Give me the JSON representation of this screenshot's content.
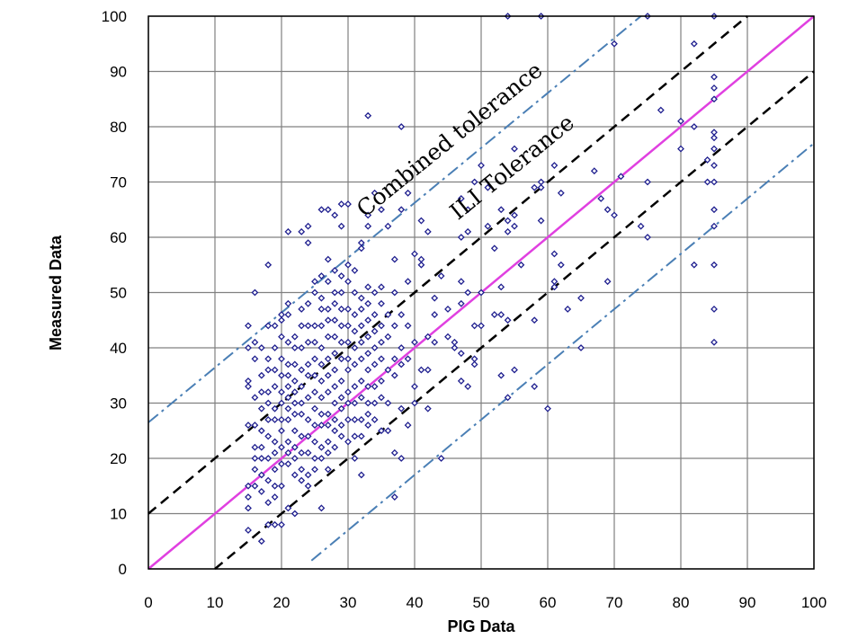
{
  "chart_data": {
    "type": "scatter",
    "title": "",
    "xlabel": "PIG Data",
    "ylabel": "Measured Data",
    "xlim": [
      0,
      100
    ],
    "ylim": [
      0,
      100
    ],
    "x_ticks": [
      "0",
      "10",
      "20",
      "30",
      "40",
      "50",
      "60",
      "70",
      "80",
      "90",
      "100"
    ],
    "y_ticks": [
      "0",
      "10",
      "20",
      "30",
      "40",
      "50",
      "60",
      "70",
      "80",
      "90",
      "100"
    ],
    "grid": true,
    "lines": [
      {
        "style": "solid",
        "color": "#e040e0",
        "points": [
          [
            0,
            0
          ],
          [
            100,
            100
          ]
        ]
      },
      {
        "style": "dashed",
        "color": "#000000",
        "points": [
          [
            0,
            10
          ],
          [
            90,
            100
          ]
        ]
      },
      {
        "style": "dashed",
        "color": "#000000",
        "points": [
          [
            10,
            0
          ],
          [
            100,
            90
          ]
        ]
      },
      {
        "style": "dash-dot",
        "color": "#4a7fb5",
        "points": [
          [
            0,
            26.5
          ],
          [
            74,
            100
          ]
        ]
      },
      {
        "style": "dash-dot",
        "color": "#4a7fb5",
        "points": [
          [
            24.5,
            1.5
          ],
          [
            100,
            77
          ]
        ]
      }
    ],
    "annotations": [
      {
        "text": "Combined tolerance",
        "x": 32.5,
        "y": 63.5
      },
      {
        "text": "ILI Tolerance",
        "x": 46.5,
        "y": 63
      }
    ],
    "marker_color": "#1f1f8f",
    "points": [
      [
        15,
        44
      ],
      [
        15,
        40
      ],
      [
        15,
        34
      ],
      [
        15,
        33
      ],
      [
        15,
        26
      ],
      [
        15,
        15
      ],
      [
        15,
        13
      ],
      [
        15,
        11
      ],
      [
        15,
        7
      ],
      [
        16,
        50
      ],
      [
        16,
        41
      ],
      [
        16,
        38
      ],
      [
        16,
        31
      ],
      [
        16,
        26
      ],
      [
        16,
        22
      ],
      [
        16,
        20
      ],
      [
        16,
        18
      ],
      [
        16,
        15
      ],
      [
        17,
        40
      ],
      [
        17,
        35
      ],
      [
        17,
        32
      ],
      [
        17,
        29
      ],
      [
        17,
        25
      ],
      [
        17,
        22
      ],
      [
        17,
        20
      ],
      [
        17,
        17
      ],
      [
        17,
        14
      ],
      [
        17,
        5
      ],
      [
        18,
        55
      ],
      [
        18,
        44
      ],
      [
        18,
        38
      ],
      [
        18,
        36
      ],
      [
        18,
        32
      ],
      [
        18,
        30
      ],
      [
        18,
        27
      ],
      [
        18,
        24
      ],
      [
        18,
        20
      ],
      [
        18,
        16
      ],
      [
        18,
        12
      ],
      [
        18,
        8
      ],
      [
        19,
        44
      ],
      [
        19,
        40
      ],
      [
        19,
        36
      ],
      [
        19,
        33
      ],
      [
        19,
        29
      ],
      [
        19,
        27
      ],
      [
        19,
        23
      ],
      [
        19,
        21
      ],
      [
        19,
        18
      ],
      [
        19,
        15
      ],
      [
        19,
        13
      ],
      [
        19,
        8
      ],
      [
        20,
        46
      ],
      [
        20,
        45
      ],
      [
        20,
        42
      ],
      [
        20,
        38
      ],
      [
        20,
        35
      ],
      [
        20,
        32
      ],
      [
        20,
        30
      ],
      [
        20,
        27
      ],
      [
        20,
        25
      ],
      [
        20,
        22
      ],
      [
        20,
        19
      ],
      [
        20,
        15
      ],
      [
        20,
        8
      ],
      [
        21,
        61
      ],
      [
        21,
        48
      ],
      [
        21,
        46
      ],
      [
        21,
        41
      ],
      [
        21,
        37
      ],
      [
        21,
        35
      ],
      [
        21,
        33
      ],
      [
        21,
        31
      ],
      [
        21,
        29
      ],
      [
        21,
        27
      ],
      [
        21,
        23
      ],
      [
        21,
        21
      ],
      [
        21,
        19
      ],
      [
        21,
        11
      ],
      [
        22,
        42
      ],
      [
        22,
        40
      ],
      [
        22,
        37
      ],
      [
        22,
        34
      ],
      [
        22,
        32
      ],
      [
        22,
        30
      ],
      [
        22,
        28
      ],
      [
        22,
        25
      ],
      [
        22,
        22
      ],
      [
        22,
        20
      ],
      [
        22,
        17
      ],
      [
        22,
        10
      ],
      [
        23,
        61
      ],
      [
        23,
        47
      ],
      [
        23,
        44
      ],
      [
        23,
        40
      ],
      [
        23,
        36
      ],
      [
        23,
        33
      ],
      [
        23,
        30
      ],
      [
        23,
        28
      ],
      [
        23,
        24
      ],
      [
        23,
        21
      ],
      [
        23,
        18
      ],
      [
        23,
        16
      ],
      [
        24,
        62
      ],
      [
        24,
        59
      ],
      [
        24,
        48
      ],
      [
        24,
        44
      ],
      [
        24,
        41
      ],
      [
        24,
        37
      ],
      [
        24,
        35
      ],
      [
        24,
        31
      ],
      [
        24,
        27
      ],
      [
        24,
        24
      ],
      [
        24,
        21
      ],
      [
        24,
        17
      ],
      [
        24,
        15
      ],
      [
        25,
        52
      ],
      [
        25,
        50
      ],
      [
        25,
        44
      ],
      [
        25,
        41
      ],
      [
        25,
        38
      ],
      [
        25,
        35
      ],
      [
        25,
        32
      ],
      [
        25,
        29
      ],
      [
        25,
        26
      ],
      [
        25,
        23
      ],
      [
        25,
        20
      ],
      [
        25,
        18
      ],
      [
        26,
        65
      ],
      [
        26,
        53
      ],
      [
        26,
        49
      ],
      [
        26,
        47
      ],
      [
        26,
        44
      ],
      [
        26,
        40
      ],
      [
        26,
        37
      ],
      [
        26,
        34
      ],
      [
        26,
        31
      ],
      [
        26,
        28
      ],
      [
        26,
        26
      ],
      [
        26,
        22
      ],
      [
        26,
        20
      ],
      [
        26,
        11
      ],
      [
        27,
        65
      ],
      [
        27,
        56
      ],
      [
        27,
        52
      ],
      [
        27,
        47
      ],
      [
        27,
        45
      ],
      [
        27,
        42
      ],
      [
        27,
        38
      ],
      [
        27,
        35
      ],
      [
        27,
        32
      ],
      [
        27,
        28
      ],
      [
        27,
        26
      ],
      [
        27,
        23
      ],
      [
        27,
        21
      ],
      [
        27,
        18
      ],
      [
        28,
        64
      ],
      [
        28,
        54
      ],
      [
        28,
        50
      ],
      [
        28,
        48
      ],
      [
        28,
        45
      ],
      [
        28,
        42
      ],
      [
        28,
        39
      ],
      [
        28,
        36
      ],
      [
        28,
        33
      ],
      [
        28,
        30
      ],
      [
        28,
        27
      ],
      [
        28,
        25
      ],
      [
        28,
        22
      ],
      [
        29,
        66
      ],
      [
        29,
        62
      ],
      [
        29,
        53
      ],
      [
        29,
        50
      ],
      [
        29,
        47
      ],
      [
        29,
        44
      ],
      [
        29,
        41
      ],
      [
        29,
        38
      ],
      [
        29,
        34
      ],
      [
        29,
        31
      ],
      [
        29,
        29
      ],
      [
        29,
        26
      ],
      [
        29,
        24
      ],
      [
        30,
        66
      ],
      [
        30,
        55
      ],
      [
        30,
        52
      ],
      [
        30,
        47
      ],
      [
        30,
        44
      ],
      [
        30,
        41
      ],
      [
        30,
        38
      ],
      [
        30,
        36
      ],
      [
        30,
        32
      ],
      [
        30,
        30
      ],
      [
        30,
        27
      ],
      [
        30,
        23
      ],
      [
        31,
        54
      ],
      [
        31,
        50
      ],
      [
        31,
        46
      ],
      [
        31,
        43
      ],
      [
        31,
        40
      ],
      [
        31,
        37
      ],
      [
        31,
        33
      ],
      [
        31,
        30
      ],
      [
        31,
        27
      ],
      [
        31,
        24
      ],
      [
        31,
        20
      ],
      [
        32,
        59
      ],
      [
        32,
        58
      ],
      [
        32,
        49
      ],
      [
        32,
        47
      ],
      [
        32,
        44
      ],
      [
        32,
        41
      ],
      [
        32,
        38
      ],
      [
        32,
        34
      ],
      [
        32,
        31
      ],
      [
        32,
        27
      ],
      [
        32,
        24
      ],
      [
        32,
        17
      ],
      [
        33,
        82
      ],
      [
        33,
        64
      ],
      [
        33,
        62
      ],
      [
        33,
        51
      ],
      [
        33,
        48
      ],
      [
        33,
        45
      ],
      [
        33,
        42
      ],
      [
        33,
        39
      ],
      [
        33,
        36
      ],
      [
        33,
        33
      ],
      [
        33,
        30
      ],
      [
        33,
        28
      ],
      [
        33,
        26
      ],
      [
        34,
        68
      ],
      [
        34,
        50
      ],
      [
        34,
        46
      ],
      [
        34,
        43
      ],
      [
        34,
        40
      ],
      [
        34,
        37
      ],
      [
        34,
        33
      ],
      [
        34,
        30
      ],
      [
        34,
        27
      ],
      [
        35,
        65
      ],
      [
        35,
        51
      ],
      [
        35,
        48
      ],
      [
        35,
        44
      ],
      [
        35,
        41
      ],
      [
        35,
        38
      ],
      [
        35,
        34
      ],
      [
        35,
        31
      ],
      [
        35,
        25
      ],
      [
        36,
        62
      ],
      [
        36,
        46
      ],
      [
        36,
        42
      ],
      [
        36,
        36
      ],
      [
        36,
        30
      ],
      [
        36,
        25
      ],
      [
        37,
        56
      ],
      [
        37,
        50
      ],
      [
        37,
        44
      ],
      [
        37,
        38
      ],
      [
        37,
        35
      ],
      [
        37,
        21
      ],
      [
        37,
        13
      ],
      [
        38,
        80
      ],
      [
        38,
        65
      ],
      [
        38,
        46
      ],
      [
        38,
        40
      ],
      [
        38,
        37
      ],
      [
        38,
        29
      ],
      [
        38,
        20
      ],
      [
        39,
        68
      ],
      [
        39,
        52
      ],
      [
        39,
        44
      ],
      [
        39,
        38
      ],
      [
        39,
        26
      ],
      [
        40,
        57
      ],
      [
        40,
        41
      ],
      [
        40,
        33
      ],
      [
        40,
        30
      ],
      [
        41,
        63
      ],
      [
        41,
        56
      ],
      [
        41,
        55
      ],
      [
        41,
        36
      ],
      [
        42,
        61
      ],
      [
        42,
        42
      ],
      [
        42,
        36
      ],
      [
        42,
        29
      ],
      [
        43,
        49
      ],
      [
        43,
        46
      ],
      [
        43,
        41
      ],
      [
        44,
        53
      ],
      [
        44,
        20
      ],
      [
        45,
        47
      ],
      [
        45,
        42
      ],
      [
        46,
        41
      ],
      [
        46,
        40
      ],
      [
        47,
        67
      ],
      [
        47,
        60
      ],
      [
        47,
        52
      ],
      [
        47,
        48
      ],
      [
        47,
        39
      ],
      [
        47,
        34
      ],
      [
        48,
        65
      ],
      [
        48,
        61
      ],
      [
        48,
        50
      ],
      [
        48,
        33
      ],
      [
        49,
        70
      ],
      [
        49,
        44
      ],
      [
        49,
        38
      ],
      [
        49,
        37
      ],
      [
        50,
        73
      ],
      [
        50,
        50
      ],
      [
        50,
        44
      ],
      [
        51,
        69
      ],
      [
        51,
        62
      ],
      [
        52,
        58
      ],
      [
        52,
        46
      ],
      [
        53,
        65
      ],
      [
        53,
        51
      ],
      [
        53,
        46
      ],
      [
        53,
        35
      ],
      [
        54,
        100
      ],
      [
        54,
        63
      ],
      [
        54,
        61
      ],
      [
        54,
        45
      ],
      [
        54,
        31
      ],
      [
        55,
        76
      ],
      [
        55,
        64
      ],
      [
        55,
        62
      ],
      [
        55,
        36
      ],
      [
        56,
        55
      ],
      [
        58,
        69
      ],
      [
        58,
        45
      ],
      [
        58,
        33
      ],
      [
        59,
        100
      ],
      [
        59,
        70
      ],
      [
        59,
        69
      ],
      [
        59,
        63
      ],
      [
        60,
        29
      ],
      [
        61,
        73
      ],
      [
        61,
        57
      ],
      [
        61,
        52
      ],
      [
        61,
        51
      ],
      [
        62,
        68
      ],
      [
        62,
        55
      ],
      [
        63,
        47
      ],
      [
        65,
        49
      ],
      [
        65,
        40
      ],
      [
        67,
        72
      ],
      [
        68,
        67
      ],
      [
        69,
        65
      ],
      [
        69,
        52
      ],
      [
        70,
        95
      ],
      [
        70,
        64
      ],
      [
        71,
        71
      ],
      [
        74,
        62
      ],
      [
        75,
        100
      ],
      [
        75,
        70
      ],
      [
        75,
        60
      ],
      [
        77,
        83
      ],
      [
        80,
        81
      ],
      [
        80,
        76
      ],
      [
        82,
        95
      ],
      [
        82,
        80
      ],
      [
        82,
        55
      ],
      [
        84,
        74
      ],
      [
        84,
        70
      ],
      [
        85,
        100
      ],
      [
        85,
        89
      ],
      [
        85,
        87
      ],
      [
        85,
        85
      ],
      [
        85,
        79
      ],
      [
        85,
        78
      ],
      [
        85,
        76
      ],
      [
        85,
        73
      ],
      [
        85,
        70
      ],
      [
        85,
        65
      ],
      [
        85,
        62
      ],
      [
        85,
        55
      ],
      [
        85,
        47
      ],
      [
        85,
        41
      ]
    ]
  }
}
